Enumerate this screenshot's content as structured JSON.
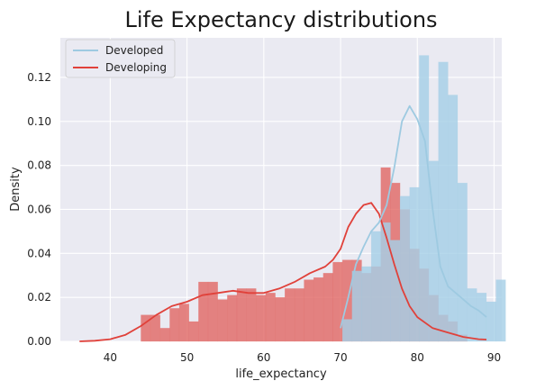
{
  "chart_data": {
    "type": "histogram-kde",
    "title": "Life Expectancy distributions",
    "xlabel": "life_expectancy",
    "ylabel": "Density",
    "xlim": [
      33.5,
      91
    ],
    "ylim": [
      0,
      0.138
    ],
    "xticks": [
      40,
      50,
      60,
      70,
      80,
      90
    ],
    "yticks": [
      0.0,
      0.02,
      0.04,
      0.06,
      0.08,
      0.1,
      0.12
    ],
    "grid": true,
    "legend_position": "top-left",
    "bin_width": 1.25,
    "series": [
      {
        "name": "Developing",
        "color": "#e0413a",
        "bar_color": "#e26a67",
        "bin_start": 44.0,
        "hist": [
          0.012,
          0.012,
          0.006,
          0.015,
          0.017,
          0.009,
          0.027,
          0.027,
          0.019,
          0.021,
          0.024,
          0.024,
          0.021,
          0.022,
          0.02,
          0.024,
          0.024,
          0.028,
          0.029,
          0.031,
          0.036,
          0.037,
          0.037,
          0.031,
          0.034,
          0.079,
          0.072,
          0.06,
          0.042,
          0.033,
          0.021,
          0.012,
          0.009,
          0.003
        ],
        "kde_x": [
          36,
          38,
          40,
          42,
          44,
          46,
          48,
          50,
          52,
          54,
          56,
          58,
          60,
          62,
          64,
          66,
          68,
          69,
          70,
          71,
          72,
          73,
          74,
          75,
          76,
          77,
          78,
          79,
          80,
          82,
          84,
          86,
          88,
          89
        ],
        "kde_y": [
          0.0,
          0.0003,
          0.001,
          0.003,
          0.007,
          0.012,
          0.016,
          0.018,
          0.021,
          0.022,
          0.023,
          0.022,
          0.022,
          0.024,
          0.027,
          0.031,
          0.034,
          0.037,
          0.042,
          0.052,
          0.058,
          0.062,
          0.063,
          0.058,
          0.047,
          0.035,
          0.024,
          0.016,
          0.011,
          0.006,
          0.004,
          0.002,
          0.001,
          0.0008
        ]
      },
      {
        "name": "Developed",
        "color": "#9ecae1",
        "bar_color": "#a6cfe6",
        "bin_start": 70.25,
        "hist": [
          0.01,
          0.032,
          0.034,
          0.05,
          0.054,
          0.046,
          0.066,
          0.07,
          0.13,
          0.082,
          0.127,
          0.112,
          0.072,
          0.024,
          0.022,
          0.018,
          0.028
        ],
        "kde_x": [
          70,
          71,
          72,
          73,
          74,
          75,
          76,
          77,
          78,
          79,
          80,
          81,
          82,
          83,
          84,
          85,
          86,
          87,
          88,
          89
        ],
        "kde_y": [
          0.006,
          0.02,
          0.035,
          0.043,
          0.05,
          0.054,
          0.062,
          0.079,
          0.1,
          0.107,
          0.101,
          0.091,
          0.06,
          0.034,
          0.025,
          0.022,
          0.019,
          0.016,
          0.014,
          0.011
        ]
      }
    ]
  }
}
